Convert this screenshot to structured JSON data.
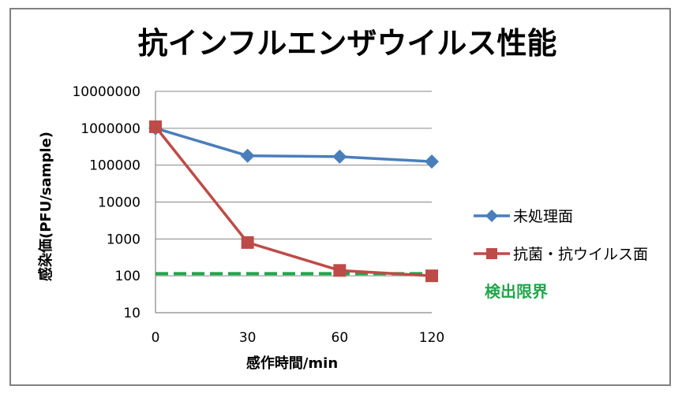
{
  "chart_data": {
    "type": "line",
    "title": "抗インフルエンザウイルス性能",
    "xlabel": "感作時間/min",
    "ylabel": "感染価(PFU/sample)",
    "x": [
      "0",
      "30",
      "60",
      "120"
    ],
    "y_scale": "log",
    "ylim": [
      10,
      10000000
    ],
    "y_ticks": [
      "10",
      "100",
      "1000",
      "10000",
      "100000",
      "1000000",
      "10000000"
    ],
    "grid": true,
    "legend_position": "right",
    "series": [
      {
        "name": "未処理面",
        "values": [
          1000000,
          180000,
          170000,
          125000
        ],
        "color": "#4a7ebb",
        "marker": "diamond"
      },
      {
        "name": "抗菌・抗ウイルス面",
        "values": [
          1100000,
          800,
          140,
          100
        ],
        "color": "#be4b48",
        "marker": "square"
      }
    ],
    "detection_limit": {
      "label": "検出限界",
      "value": 115,
      "color": "#1fa64a"
    }
  }
}
